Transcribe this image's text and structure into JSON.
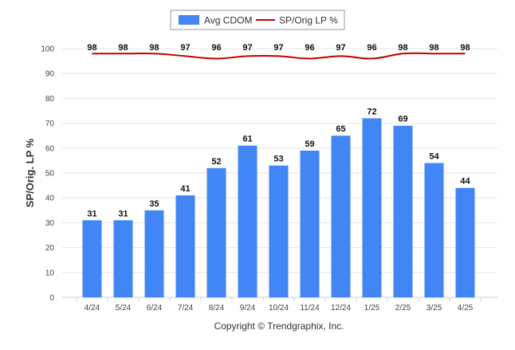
{
  "colors": {
    "bar": "#4285f4",
    "line": "#c00000",
    "grid": "#e6e6e6",
    "axis": "#cccccc",
    "legend_border": "#999999"
  },
  "legend": {
    "bar_label": "Avg CDOM",
    "line_label": "SP/Orig LP %"
  },
  "footer": "Copyright © Trendgraphix, Inc.",
  "chart_data": {
    "type": "bar",
    "categories": [
      "4/24",
      "5/24",
      "6/24",
      "7/24",
      "8/24",
      "9/24",
      "10/24",
      "11/24",
      "12/24",
      "1/25",
      "2/25",
      "3/25",
      "4/25"
    ],
    "series": [
      {
        "name": "Avg CDOM",
        "type": "bar",
        "values": [
          31,
          31,
          35,
          41,
          52,
          61,
          53,
          59,
          65,
          72,
          69,
          54,
          44
        ]
      },
      {
        "name": "SP/Orig LP %",
        "type": "line",
        "values": [
          98,
          98,
          98,
          97,
          96,
          97,
          97,
          96,
          97,
          96,
          98,
          98,
          98
        ]
      }
    ],
    "ylabel": "SP/Orig. LP %",
    "xlabel": "",
    "ylim": [
      0,
      100
    ],
    "yticks": [
      0,
      10,
      20,
      30,
      40,
      50,
      60,
      70,
      80,
      90,
      100
    ],
    "grid": true,
    "legend_position": "top-center"
  }
}
